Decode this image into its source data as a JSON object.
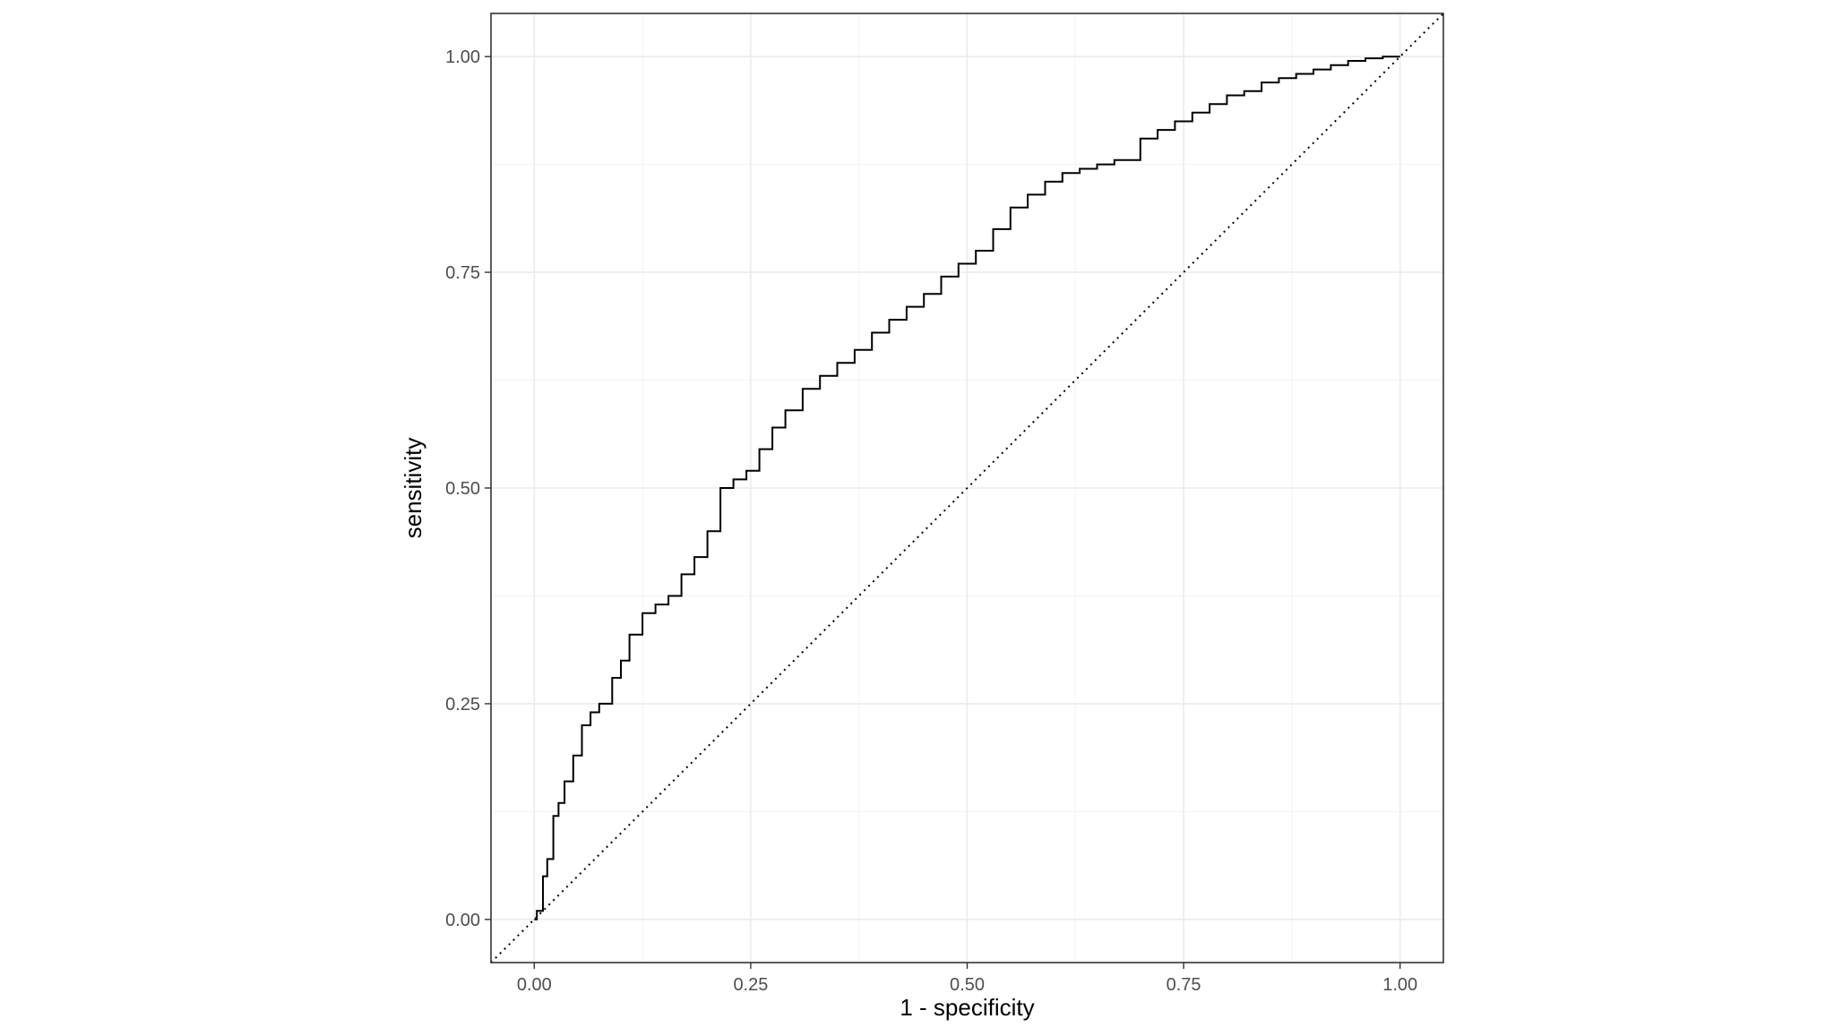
{
  "chart_data": {
    "type": "line",
    "title": "",
    "xlabel": "1 - specificity",
    "ylabel": "sensitivity",
    "xlim": [
      -0.05,
      1.05
    ],
    "ylim": [
      -0.05,
      1.05
    ],
    "x_ticks": [
      {
        "value": 0.0,
        "label": "0.00"
      },
      {
        "value": 0.25,
        "label": "0.25"
      },
      {
        "value": 0.5,
        "label": "0.50"
      },
      {
        "value": 0.75,
        "label": "0.75"
      },
      {
        "value": 1.0,
        "label": "1.00"
      }
    ],
    "y_ticks": [
      {
        "value": 0.0,
        "label": "0.00"
      },
      {
        "value": 0.25,
        "label": "0.25"
      },
      {
        "value": 0.5,
        "label": "0.50"
      },
      {
        "value": 0.75,
        "label": "0.75"
      },
      {
        "value": 1.0,
        "label": "1.00"
      }
    ],
    "grid": true,
    "legend": "none",
    "series": [
      {
        "style": "solid-step",
        "color": "#000000",
        "x": [
          0.0,
          0.003,
          0.01,
          0.015,
          0.022,
          0.028,
          0.035,
          0.045,
          0.055,
          0.065,
          0.075,
          0.09,
          0.1,
          0.11,
          0.125,
          0.14,
          0.155,
          0.17,
          0.185,
          0.2,
          0.215,
          0.23,
          0.245,
          0.26,
          0.275,
          0.29,
          0.31,
          0.33,
          0.35,
          0.37,
          0.39,
          0.41,
          0.43,
          0.45,
          0.47,
          0.49,
          0.51,
          0.53,
          0.55,
          0.57,
          0.59,
          0.61,
          0.63,
          0.65,
          0.67,
          0.7,
          0.72,
          0.74,
          0.76,
          0.78,
          0.8,
          0.82,
          0.84,
          0.86,
          0.88,
          0.9,
          0.92,
          0.94,
          0.96,
          0.98,
          1.0
        ],
        "y": [
          0.0,
          0.01,
          0.05,
          0.07,
          0.12,
          0.135,
          0.16,
          0.19,
          0.225,
          0.24,
          0.25,
          0.28,
          0.3,
          0.33,
          0.355,
          0.365,
          0.375,
          0.4,
          0.42,
          0.45,
          0.5,
          0.51,
          0.52,
          0.545,
          0.57,
          0.59,
          0.615,
          0.63,
          0.645,
          0.66,
          0.68,
          0.695,
          0.71,
          0.725,
          0.745,
          0.76,
          0.775,
          0.8,
          0.825,
          0.84,
          0.855,
          0.865,
          0.87,
          0.875,
          0.88,
          0.905,
          0.915,
          0.925,
          0.935,
          0.945,
          0.955,
          0.96,
          0.97,
          0.975,
          0.98,
          0.985,
          0.99,
          0.995,
          0.998,
          1.0,
          1.0
        ]
      },
      {
        "style": "dotted-diagonal",
        "color": "#000000",
        "x": [
          -0.05,
          1.05
        ],
        "y": [
          -0.05,
          1.05
        ]
      }
    ]
  }
}
